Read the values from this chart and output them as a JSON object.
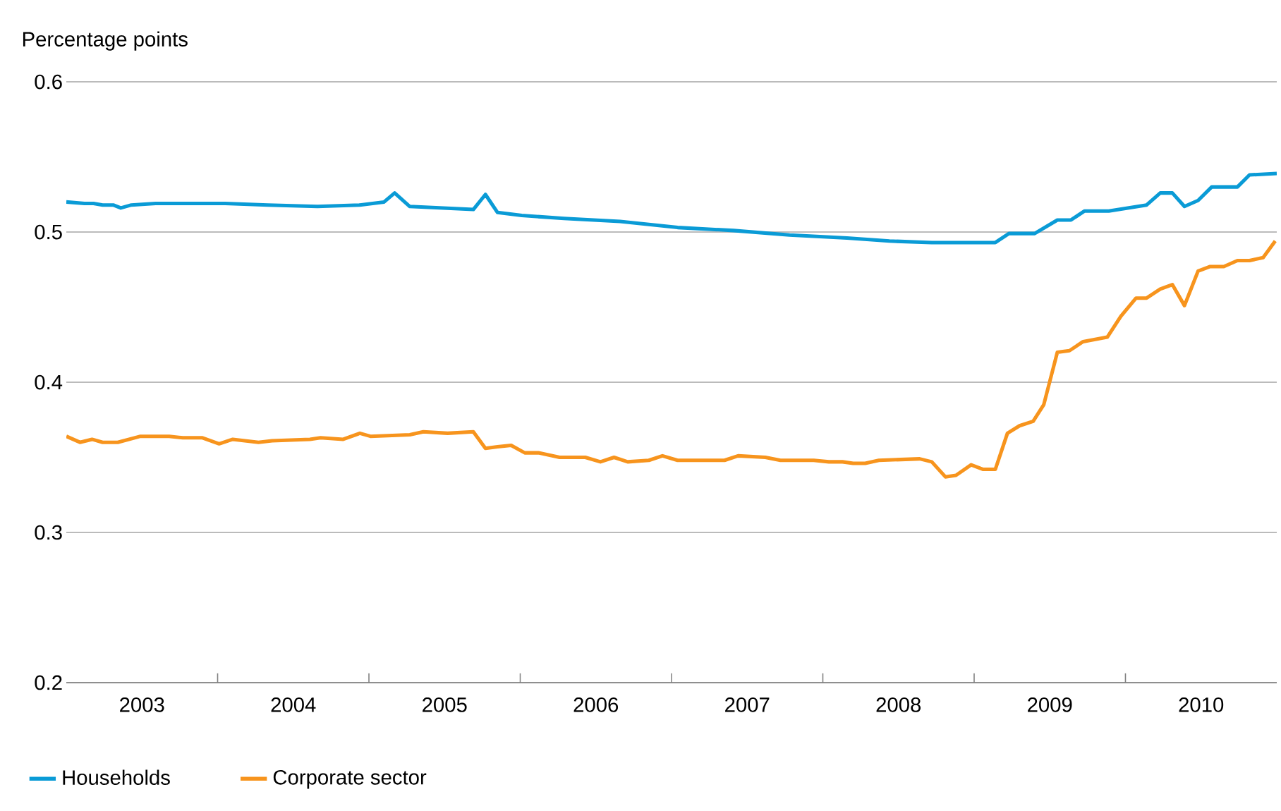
{
  "chart_data": {
    "type": "line",
    "ylabel": "Percentage points",
    "xlim": [
      2003,
      2011
    ],
    "ylim": [
      0.2,
      0.6
    ],
    "xticks": [
      {
        "value": 2003.5,
        "label": "2003"
      },
      {
        "value": 2004,
        "label": null
      },
      {
        "value": 2004.5,
        "label": "2004"
      },
      {
        "value": 2005,
        "label": null
      },
      {
        "value": 2005.5,
        "label": "2005"
      },
      {
        "value": 2006,
        "label": null
      },
      {
        "value": 2006.5,
        "label": "2006"
      },
      {
        "value": 2007,
        "label": null
      },
      {
        "value": 2007.5,
        "label": "2007"
      },
      {
        "value": 2008,
        "label": null
      },
      {
        "value": 2008.5,
        "label": "2008"
      },
      {
        "value": 2009,
        "label": null
      },
      {
        "value": 2009.5,
        "label": "2009"
      },
      {
        "value": 2010,
        "label": null
      },
      {
        "value": 2010.5,
        "label": "2010"
      }
    ],
    "yticks": [
      0.2,
      0.3,
      0.4,
      0.5,
      0.6
    ],
    "grid": "y",
    "legend": "bottom",
    "series": [
      {
        "name": "Households",
        "color": "#0a9bd6",
        "x": [
          2003.0,
          2003.12,
          2003.18,
          2003.24,
          2003.31,
          2003.36,
          2003.43,
          2003.59,
          2004.05,
          2004.33,
          2004.66,
          2004.94,
          2005.1,
          2005.17,
          2005.27,
          2005.69,
          2005.77,
          2005.85,
          2006.01,
          2006.29,
          2006.66,
          2007.04,
          2007.41,
          2007.78,
          2008.16,
          2008.44,
          2008.72,
          2009.14,
          2009.23,
          2009.4,
          2009.55,
          2009.64,
          2009.73,
          2009.89,
          2010.14,
          2010.23,
          2010.31,
          2010.39,
          2010.48,
          2010.57,
          2010.74,
          2010.82,
          2011.0
        ],
        "values": [
          0.52,
          0.519,
          0.519,
          0.518,
          0.518,
          0.516,
          0.518,
          0.519,
          0.519,
          0.518,
          0.517,
          0.518,
          0.52,
          0.526,
          0.517,
          0.515,
          0.525,
          0.513,
          0.511,
          0.509,
          0.507,
          0.503,
          0.501,
          0.498,
          0.496,
          0.494,
          0.493,
          0.493,
          0.499,
          0.499,
          0.508,
          0.508,
          0.514,
          0.514,
          0.518,
          0.526,
          0.526,
          0.517,
          0.521,
          0.53,
          0.53,
          0.538,
          0.539
        ]
      },
      {
        "name": "Corporate sector",
        "color": "#f7941d",
        "x": [
          2003.0,
          2003.09,
          2003.17,
          2003.24,
          2003.34,
          2003.49,
          2003.68,
          2003.77,
          2003.9,
          2004.01,
          2004.1,
          2004.27,
          2004.36,
          2004.61,
          2004.68,
          2004.83,
          2004.94,
          2005.01,
          2005.27,
          2005.36,
          2005.52,
          2005.69,
          2005.77,
          2005.85,
          2005.94,
          2006.03,
          2006.12,
          2006.26,
          2006.43,
          2006.53,
          2006.62,
          2006.71,
          2006.85,
          2006.94,
          2007.04,
          2007.35,
          2007.44,
          2007.62,
          2007.72,
          2007.94,
          2008.04,
          2008.13,
          2008.2,
          2008.28,
          2008.37,
          2008.64,
          2008.72,
          2008.81,
          2008.88,
          2008.98,
          2009.06,
          2009.14,
          2009.22,
          2009.3,
          2009.39,
          2009.46,
          2009.55,
          2009.63,
          2009.72,
          2009.88,
          2009.97,
          2010.07,
          2010.14,
          2010.23,
          2010.31,
          2010.39,
          2010.48,
          2010.56,
          2010.65,
          2010.74,
          2010.82,
          2010.91,
          2010.99
        ],
        "values": [
          0.364,
          0.36,
          0.362,
          0.36,
          0.36,
          0.364,
          0.364,
          0.363,
          0.363,
          0.359,
          0.362,
          0.36,
          0.361,
          0.362,
          0.363,
          0.362,
          0.366,
          0.364,
          0.365,
          0.367,
          0.366,
          0.367,
          0.356,
          0.357,
          0.358,
          0.353,
          0.353,
          0.35,
          0.35,
          0.347,
          0.35,
          0.347,
          0.348,
          0.351,
          0.348,
          0.348,
          0.351,
          0.35,
          0.348,
          0.348,
          0.347,
          0.347,
          0.346,
          0.346,
          0.348,
          0.349,
          0.347,
          0.337,
          0.338,
          0.345,
          0.342,
          0.342,
          0.366,
          0.371,
          0.374,
          0.385,
          0.42,
          0.421,
          0.427,
          0.43,
          0.444,
          0.456,
          0.456,
          0.462,
          0.465,
          0.451,
          0.474,
          0.477,
          0.477,
          0.481,
          0.481,
          0.483,
          0.494
        ]
      }
    ]
  }
}
